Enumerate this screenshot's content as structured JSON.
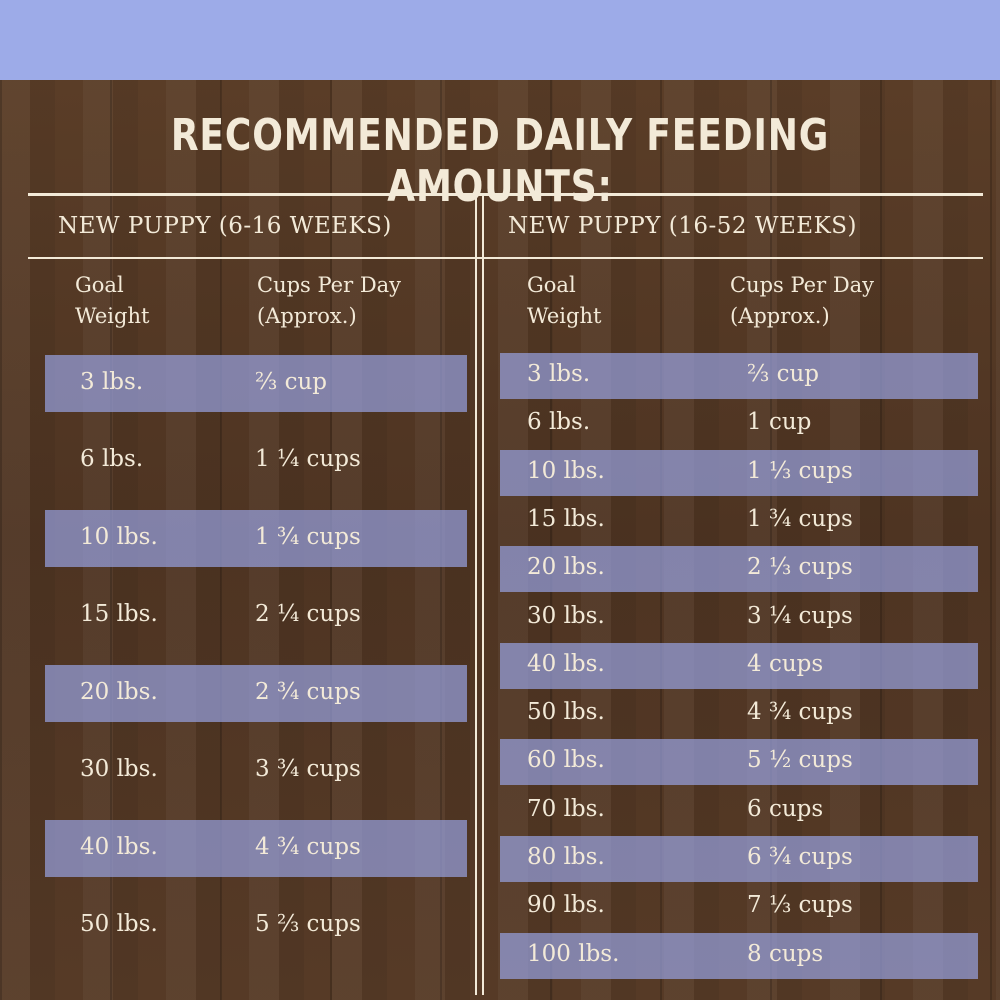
{
  "title": "RECOMMENDED DAILY FEEDING AMOUNTS:",
  "tables": [
    {
      "heading": "NEW PUPPY (6-16 WEEKS)",
      "columns": [
        "Goal Weight",
        "Cups Per Day (Approx.)"
      ],
      "rows": [
        [
          "3 lbs.",
          "⅔ cup"
        ],
        [
          "6 lbs.",
          "1 ¼ cups"
        ],
        [
          "10 lbs.",
          "1 ¾ cups"
        ],
        [
          "15 lbs.",
          "2 ¼ cups"
        ],
        [
          "20 lbs.",
          "2 ¾ cups"
        ],
        [
          "30 lbs.",
          "3 ¾ cups"
        ],
        [
          "40 lbs.",
          "4 ¾ cups"
        ],
        [
          "50 lbs.",
          "5 ⅔ cups"
        ]
      ]
    },
    {
      "heading": "NEW PUPPY (16-52 WEEKS)",
      "columns": [
        "Goal Weight",
        "Cups Per Day (Approx.)"
      ],
      "rows": [
        [
          "3 lbs.",
          "⅔ cup"
        ],
        [
          "6 lbs.",
          "1 cup"
        ],
        [
          "10 lbs.",
          "1 ⅓ cups"
        ],
        [
          "15 lbs.",
          "1 ¾ cups"
        ],
        [
          "20 lbs.",
          "2 ⅓ cups"
        ],
        [
          "30 lbs.",
          "3 ¼ cups"
        ],
        [
          "40 lbs.",
          "4 cups"
        ],
        [
          "50 lbs.",
          "4 ¾ cups"
        ],
        [
          "60 lbs.",
          "5 ½ cups"
        ],
        [
          "70 lbs.",
          "6 cups"
        ],
        [
          "80 lbs.",
          "6 ¾ cups"
        ],
        [
          "90 lbs.",
          "7 ⅓ cups"
        ],
        [
          "100 lbs.",
          "8 cups"
        ]
      ]
    }
  ]
}
